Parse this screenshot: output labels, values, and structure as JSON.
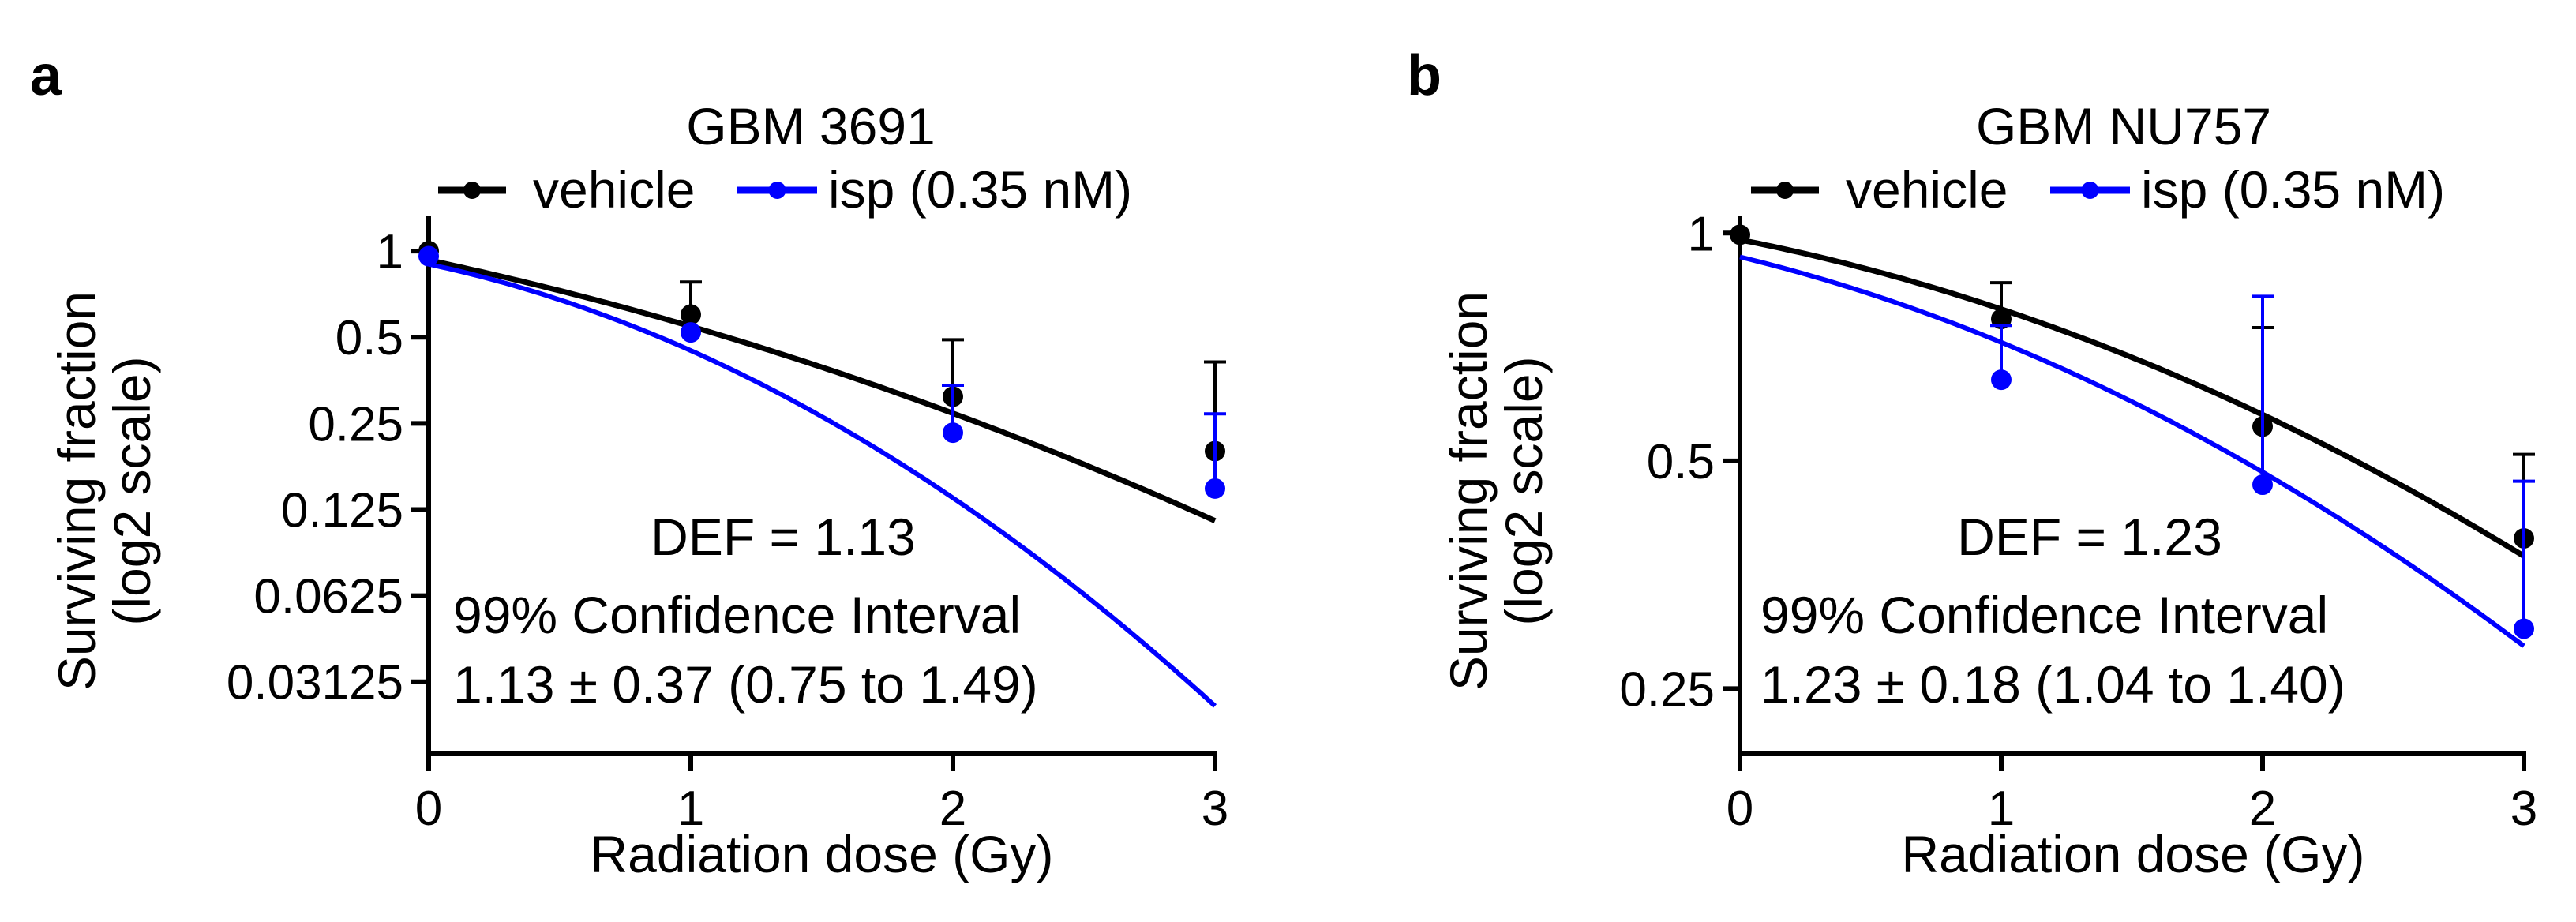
{
  "chart_data": [
    {
      "panel_label": "a",
      "type": "scatter",
      "title": "GBM 3691",
      "xlabel": "Radiation dose (Gy)",
      "ylabel_line1": "Surviving fraction",
      "ylabel_line2": "(log2 scale)",
      "yscale": "log2",
      "xlim": [
        0,
        3
      ],
      "ylim": [
        0.0175,
        1.25
      ],
      "xticks": [
        0,
        1,
        2,
        3
      ],
      "xtick_labels": [
        "0",
        "1",
        "2",
        "3"
      ],
      "yticks": [
        1,
        0.5,
        0.25,
        0.125,
        0.0625,
        0.03125
      ],
      "ytick_labels": [
        "1",
        "0.5",
        "0.25",
        "0.125",
        "0.0625",
        "0.03125"
      ],
      "legend": [
        "vehicle",
        "isp (0.35 nM)"
      ],
      "series": [
        {
          "name": "vehicle",
          "color": "#000000",
          "x": [
            0,
            1,
            2,
            3
          ],
          "y": [
            1.0,
            0.6,
            0.31,
            0.2
          ],
          "err_upper": [
            null,
            0.78,
            0.49,
            0.41
          ],
          "fit": {
            "alpha": 0.45,
            "beta": 0.083,
            "s0": 0.93,
            "xmax": 3
          }
        },
        {
          "name": "isp (0.35 nM)",
          "color": "#0000ff",
          "x": [
            0,
            1,
            2,
            3
          ],
          "y": [
            0.96,
            0.52,
            0.232,
            0.148
          ],
          "err_upper": [
            null,
            null,
            0.34,
            0.27
          ],
          "fit": {
            "alpha": 0.45,
            "beta": 0.245,
            "s0": 0.9,
            "xmax": 3
          }
        }
      ],
      "annotations": [
        "DEF = 1.13",
        "99% Confidence Interval",
        "1.13 ± 0.37 (0.75 to 1.49)"
      ]
    },
    {
      "panel_label": "b",
      "type": "scatter",
      "title": "GBM NU757",
      "xlabel": "Radiation dose (Gy)",
      "ylabel_line1": "Surviving fraction",
      "ylabel_line2": "(log2 scale)",
      "yscale": "log2",
      "xlim": [
        0,
        3
      ],
      "ylim": [
        0.205,
        1.03
      ],
      "xticks": [
        0,
        1,
        2,
        3
      ],
      "xtick_labels": [
        "0",
        "1",
        "2",
        "3"
      ],
      "yticks": [
        1,
        0.5,
        0.25
      ],
      "ytick_labels": [
        "1",
        "0.5",
        "0.25"
      ],
      "legend": [
        "vehicle",
        "isp (0.35 nM)"
      ],
      "series": [
        {
          "name": "vehicle",
          "color": "#000000",
          "x": [
            0,
            1,
            2,
            3
          ],
          "y": [
            0.995,
            0.77,
            0.555,
            0.395
          ],
          "err_upper": [
            null,
            0.86,
            0.75,
            0.51
          ],
          "fit": {
            "alpha": 0.1565,
            "beta": 0.0548,
            "s0": 0.98,
            "xmax": 3
          }
        },
        {
          "name": "isp (0.35 nM)",
          "color": "#0000ff",
          "x": [
            0,
            1,
            2,
            3
          ],
          "y": [
            null,
            0.64,
            0.465,
            0.3
          ],
          "err_upper": [
            null,
            0.755,
            0.825,
            0.47
          ],
          "fit": {
            "alpha": 0.1925,
            "beta": 0.0674,
            "s0": 0.93,
            "xmax": 3
          }
        }
      ],
      "annotations": [
        "DEF = 1.23",
        "99% Confidence Interval",
        "1.23 ± 0.18 (1.04 to 1.40)"
      ]
    }
  ]
}
